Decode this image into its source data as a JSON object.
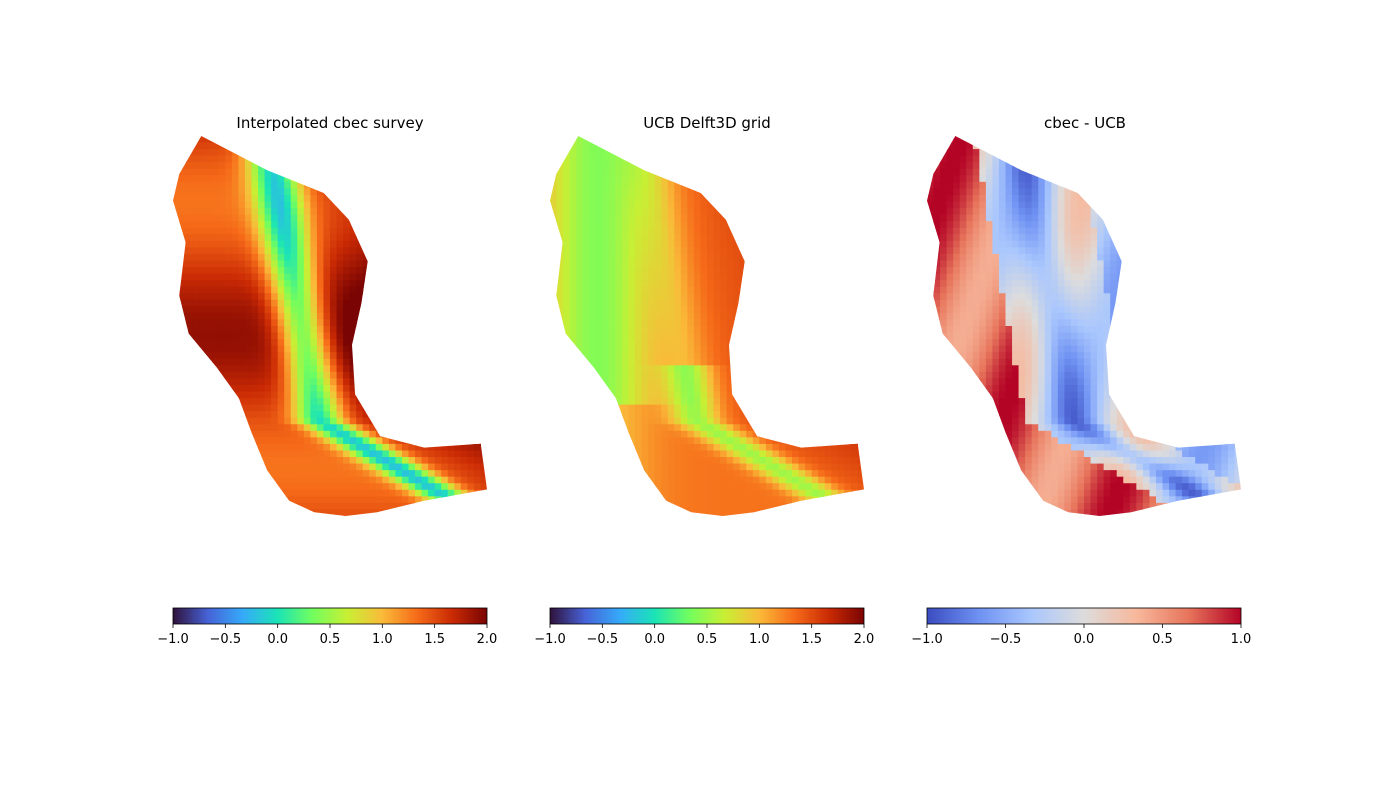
{
  "chart_data": [
    {
      "type": "heatmap",
      "title": "Interpolated cbec survey",
      "colormap": "turbo",
      "colorbar": {
        "orientation": "horizontal",
        "vmin": -1.0,
        "vmax": 2.0,
        "ticks": [
          -1.0,
          -0.5,
          0.0,
          0.5,
          1.0,
          1.5,
          2.0
        ],
        "tick_labels": [
          "−1.0",
          "−0.5",
          "0.0",
          "0.5",
          "1.0",
          "1.5",
          "2.0"
        ]
      },
      "axes_visible": false
    },
    {
      "type": "heatmap",
      "title": "UCB Delft3D grid",
      "colormap": "turbo",
      "colorbar": {
        "orientation": "horizontal",
        "vmin": -1.0,
        "vmax": 2.0,
        "ticks": [
          -1.0,
          -0.5,
          0.0,
          0.5,
          1.0,
          1.5,
          2.0
        ],
        "tick_labels": [
          "−1.0",
          "−0.5",
          "0.0",
          "0.5",
          "1.0",
          "1.5",
          "2.0"
        ]
      },
      "axes_visible": false
    },
    {
      "type": "heatmap",
      "title": "cbec - UCB",
      "colormap": "coolwarm",
      "colorbar": {
        "orientation": "horizontal",
        "vmin": -1.0,
        "vmax": 1.0,
        "ticks": [
          -1.0,
          -0.5,
          0.0,
          0.5,
          1.0
        ],
        "tick_labels": [
          "−1.0",
          "−0.5",
          "0.0",
          "0.5",
          "1.0"
        ]
      },
      "axes_visible": false
    }
  ],
  "colors": {
    "turbo_stops": [
      "#30123b",
      "#4662d7",
      "#36aaf9",
      "#1ae4b6",
      "#72fe5e",
      "#c8ef34",
      "#faba39",
      "#f66b19",
      "#ca2a04",
      "#7a0403"
    ],
    "coolwarm_stops": [
      "#3b4cc0",
      "#6f92f3",
      "#aac7fd",
      "#dddcdc",
      "#f7b89c",
      "#e7745b",
      "#b40426"
    ]
  }
}
